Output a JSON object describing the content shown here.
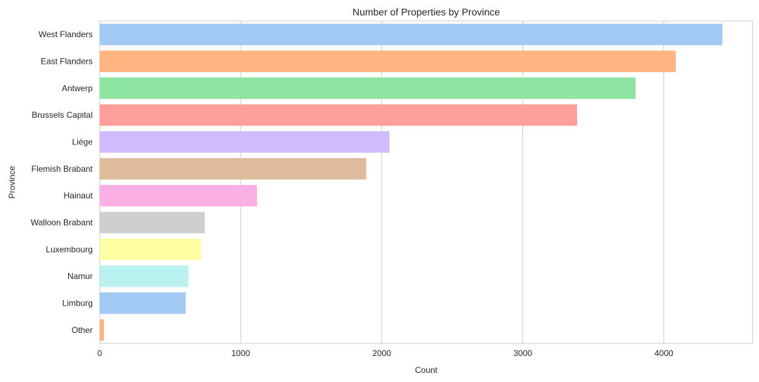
{
  "chart_data": {
    "type": "bar",
    "orientation": "horizontal",
    "title": "Number of Properties by Province",
    "xlabel": "Count",
    "ylabel": "Province",
    "xlim": [
      0,
      4630
    ],
    "xticks": [
      "0",
      "1000",
      "2000",
      "3000",
      "4000"
    ],
    "grid": true,
    "categories": [
      "West Flanders",
      "East Flanders",
      "Antwerp",
      "Brussels Capital",
      "Liège",
      "Flemish Brabant",
      "Hainaut",
      "Walloon Brabant",
      "Luxembourg",
      "Namur",
      "Limburg",
      "Other"
    ],
    "values": [
      4415,
      4085,
      3800,
      3385,
      2055,
      1890,
      1115,
      745,
      720,
      630,
      610,
      30
    ],
    "colors": [
      "#a1c9f4",
      "#ffb482",
      "#8de5a1",
      "#ff9f9b",
      "#d0bbff",
      "#debb9b",
      "#fab0e4",
      "#cfcfcf",
      "#fffea3",
      "#b9f2f0",
      "#a1c9f4",
      "#ffb482"
    ]
  }
}
